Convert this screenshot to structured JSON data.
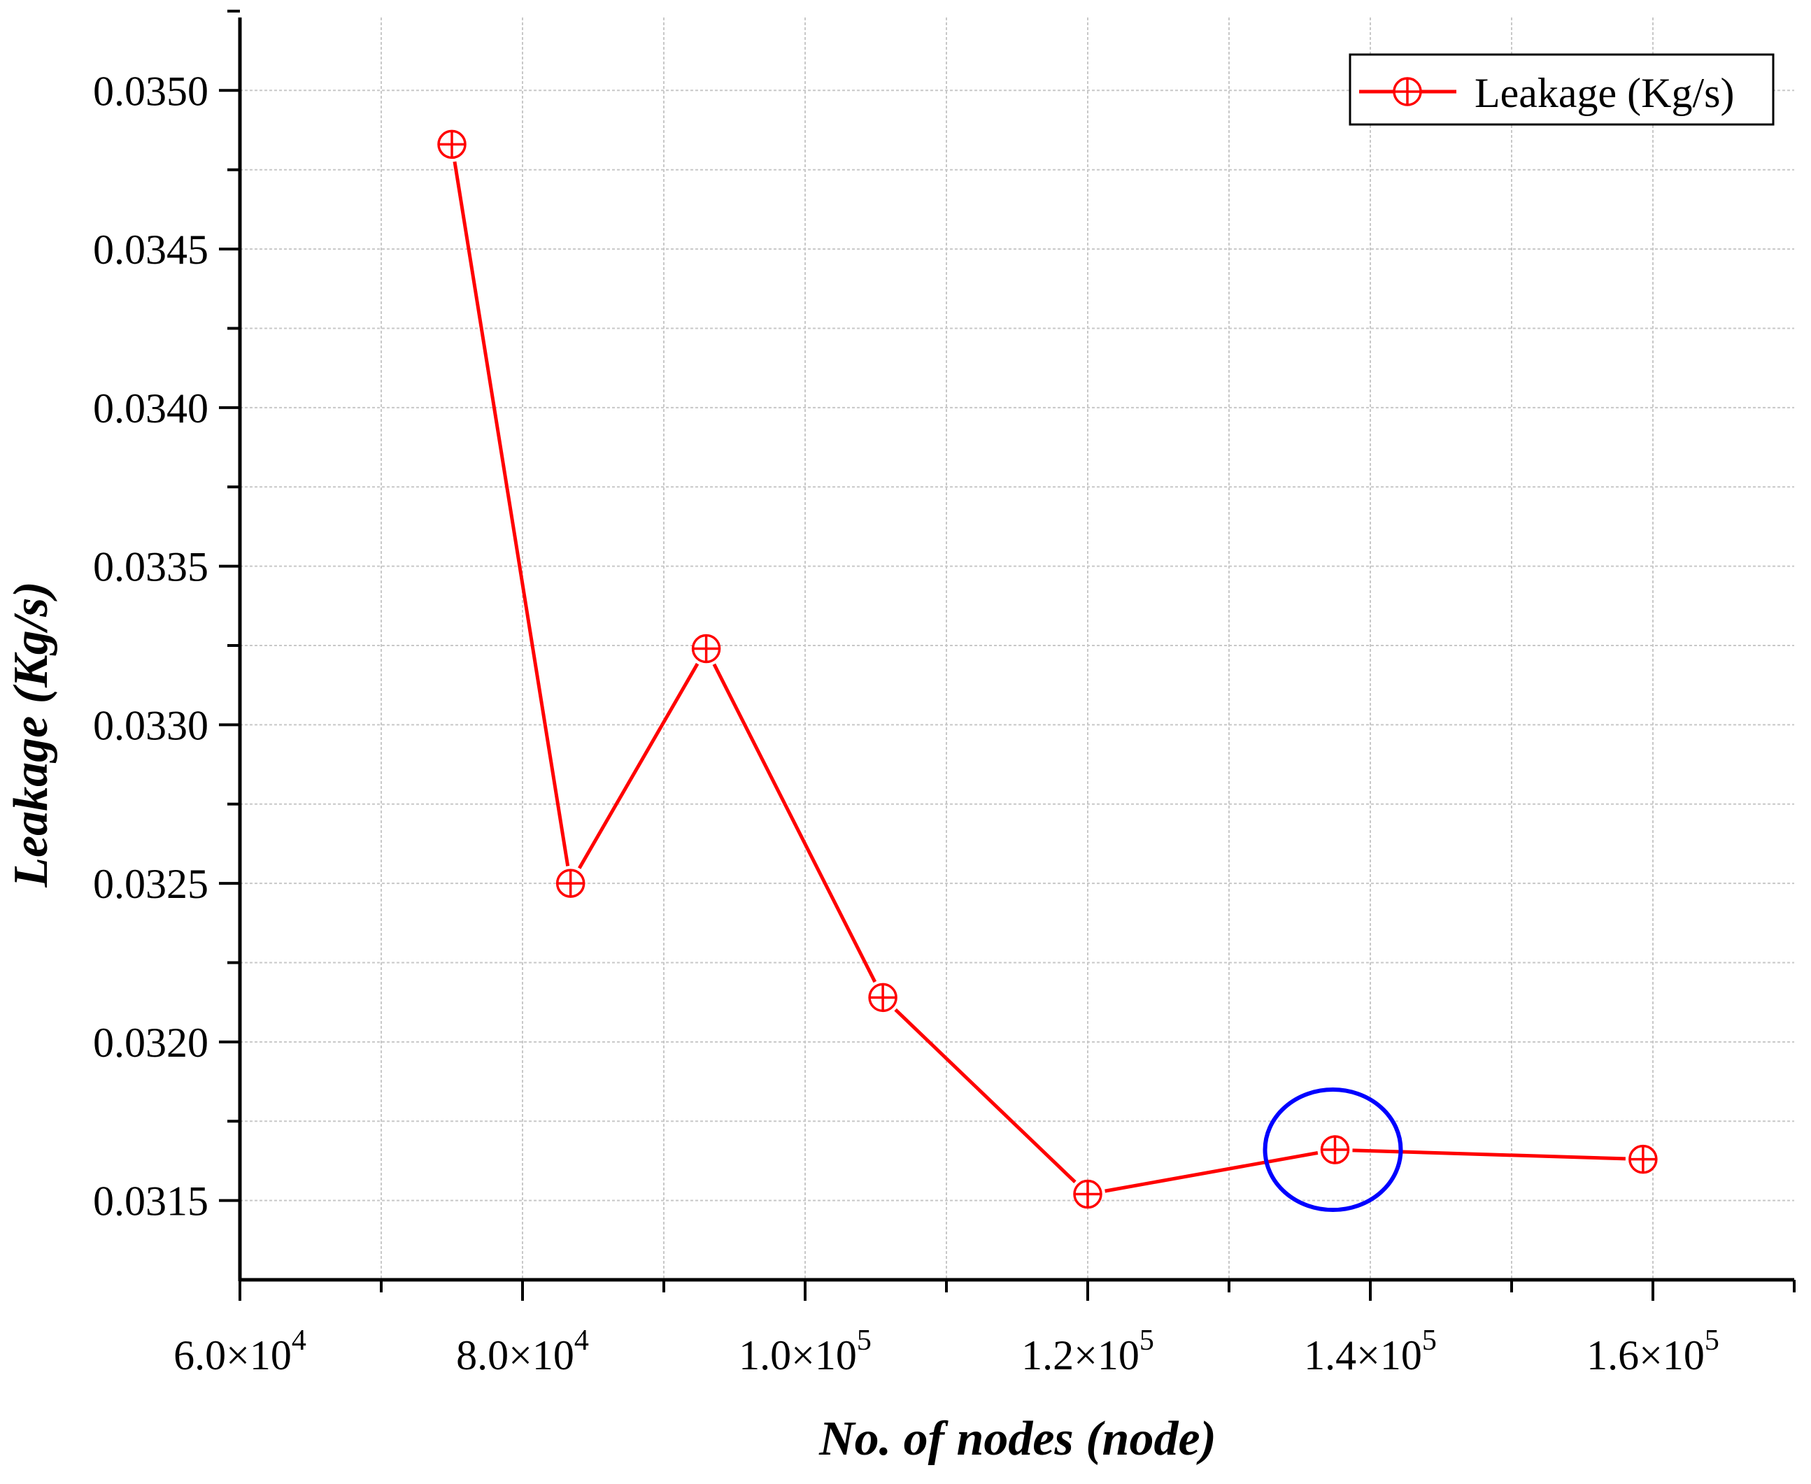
{
  "chart_data": {
    "type": "line",
    "title": "",
    "xlabel": "No. of nodes (node)",
    "ylabel": "Leakage (Kg/s)",
    "xlim": [
      60000,
      170000
    ],
    "ylim": [
      0.03125,
      0.03523
    ],
    "x_ticks": [
      60000,
      80000,
      100000,
      120000,
      140000,
      160000
    ],
    "x_tick_labels": [
      {
        "mantissa": "6.0×10",
        "exp": "4"
      },
      {
        "mantissa": "8.0×10",
        "exp": "4"
      },
      {
        "mantissa": "1.0×10",
        "exp": "5"
      },
      {
        "mantissa": "1.2×10",
        "exp": "5"
      },
      {
        "mantissa": "1.4×10",
        "exp": "5"
      },
      {
        "mantissa": "1.6×10",
        "exp": "5"
      }
    ],
    "x_minor_ticks": [
      70000,
      90000,
      110000,
      130000,
      150000,
      170000
    ],
    "y_ticks": [
      0.0315,
      0.032,
      0.0325,
      0.033,
      0.0335,
      0.034,
      0.0345,
      0.035
    ],
    "y_tick_labels": [
      "0.0315",
      "0.0320",
      "0.0325",
      "0.0330",
      "0.0335",
      "0.0340",
      "0.0345",
      "0.0350"
    ],
    "y_minor_ticks": [
      0.03175,
      0.03225,
      0.03275,
      0.03325,
      0.03375,
      0.03425,
      0.03475,
      0.03525
    ],
    "grid": true,
    "legend_position": "top-right",
    "series": [
      {
        "name": "Leakage (Kg/s)",
        "color": "#ff0000",
        "marker": "circle-plus",
        "x": [
          75000,
          83400,
          93000,
          105500,
          120000,
          137500,
          159300
        ],
        "y": [
          0.03483,
          0.0325,
          0.03324,
          0.03214,
          0.03152,
          0.03166,
          0.03163
        ]
      }
    ],
    "annotations": [
      {
        "type": "ellipse",
        "color": "#0000ff",
        "around_x": 137500,
        "around_y": 0.03166
      }
    ]
  }
}
